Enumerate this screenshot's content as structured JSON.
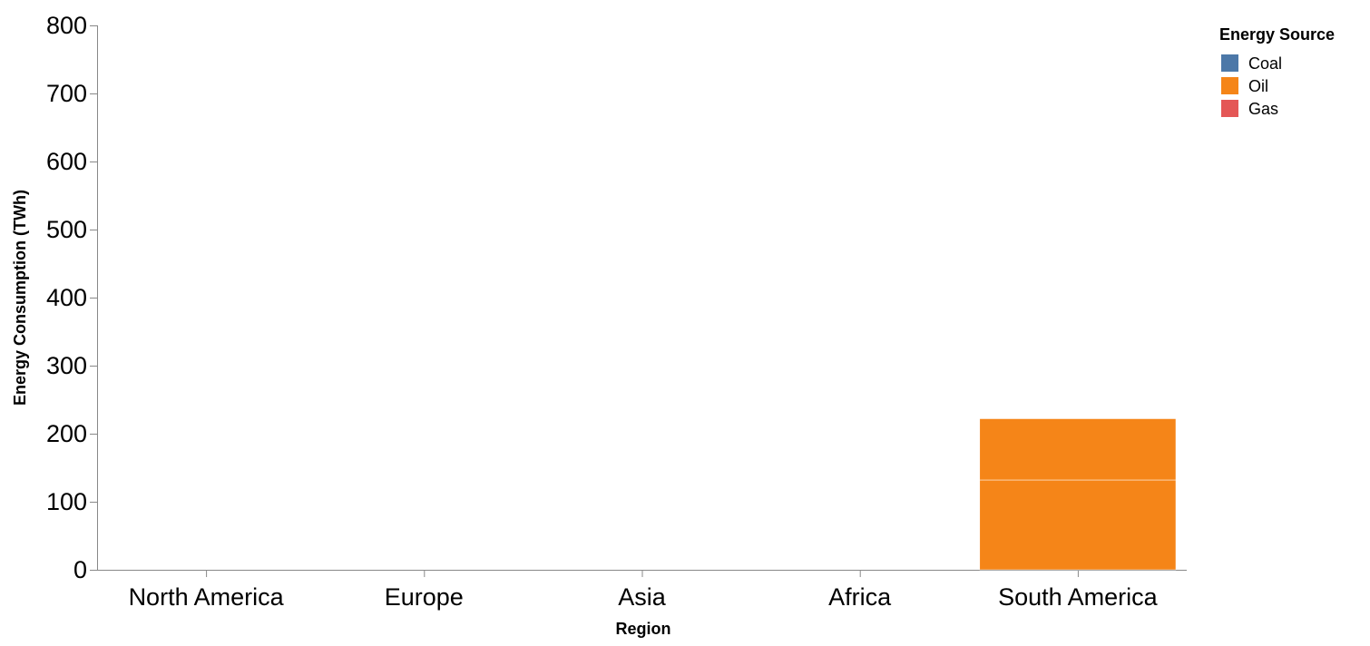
{
  "chart_data": {
    "type": "bar",
    "stacked": true,
    "categories": [
      "North America",
      "Europe",
      "Asia",
      "Africa",
      "South America"
    ],
    "series": [
      {
        "name": "Coal",
        "color": "#4c78a8",
        "values": [
          0,
          0,
          0,
          0,
          0
        ]
      },
      {
        "name": "Oil",
        "color": "#f58518",
        "values": [
          0,
          0,
          0,
          0,
          132
        ]
      },
      {
        "name": "Gas",
        "color": "#e45756",
        "values": [
          0,
          0,
          0,
          0,
          0
        ]
      },
      {
        "name": "",
        "color": "#f58518",
        "values": [
          0,
          0,
          0,
          0,
          90
        ]
      }
    ],
    "xlabel": "Region",
    "ylabel": "Energy Consumption (TWh)",
    "ylim": [
      0,
      800
    ],
    "yticks": [
      0,
      100,
      200,
      300,
      400,
      500,
      600,
      700,
      800
    ],
    "grid": false,
    "legend": {
      "title": "Energy Source",
      "placement": "top-right",
      "entries": [
        {
          "label": "Coal",
          "color": "#4c78a8"
        },
        {
          "label": "Oil",
          "color": "#f58518"
        },
        {
          "label": "Gas",
          "color": "#e45756"
        }
      ]
    }
  }
}
